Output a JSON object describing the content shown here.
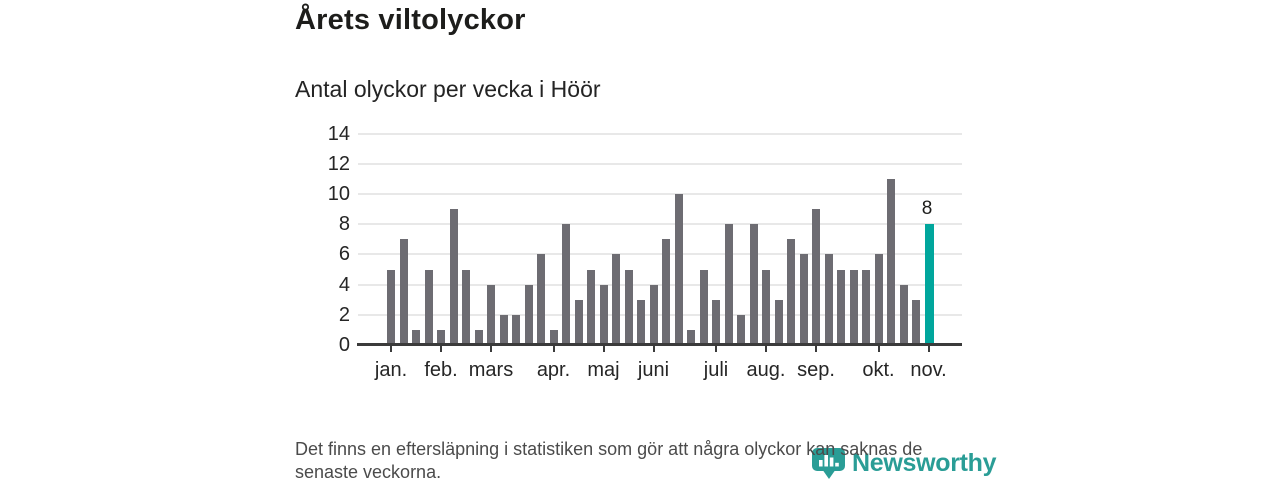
{
  "header": {
    "title": "Årets viltolyckor",
    "subtitle": "Antal olyckor per vecka i Höör"
  },
  "chart_data": {
    "type": "bar",
    "title": "Årets viltolyckor",
    "subtitle": "Antal olyckor per vecka i Höör",
    "x_unit": "vecka (jan–nov)",
    "n_weeks": 44,
    "values": [
      5,
      7,
      1,
      5,
      1,
      9,
      5,
      1,
      4,
      2,
      2,
      4,
      6,
      1,
      8,
      3,
      5,
      4,
      6,
      5,
      3,
      4,
      7,
      10,
      1,
      5,
      3,
      8,
      2,
      8,
      5,
      3,
      7,
      6,
      9,
      6,
      5,
      5,
      5,
      6,
      11,
      4,
      3,
      8
    ],
    "highlight_last": {
      "value": 8,
      "label": "8"
    },
    "yticks": [
      0,
      2,
      4,
      6,
      8,
      10,
      12,
      14
    ],
    "ylim": [
      0,
      14
    ],
    "grid": "horizontal",
    "legend": "none",
    "month_ticks": [
      {
        "label": "jan.",
        "week": 1
      },
      {
        "label": "feb.",
        "week": 5
      },
      {
        "label": "mars",
        "week": 9
      },
      {
        "label": "apr.",
        "week": 14
      },
      {
        "label": "maj",
        "week": 18
      },
      {
        "label": "juni",
        "week": 22
      },
      {
        "label": "juli",
        "week": 27
      },
      {
        "label": "aug.",
        "week": 31
      },
      {
        "label": "sep.",
        "week": 35
      },
      {
        "label": "okt.",
        "week": 40
      },
      {
        "label": "nov.",
        "week": 44
      }
    ],
    "colors": {
      "bar": "#6d6c72",
      "highlight": "#00a69c",
      "grid": "#e8e8e8",
      "axis": "#3b3b3b"
    }
  },
  "footer": {
    "lines": [
      "Det finns en eftersläpning i statistiken som gör att några olyckor kan saknas de",
      "senaste veckorna."
    ]
  },
  "branding": {
    "logo_text": "Newsworthy",
    "logo_color": "#2a9d96"
  }
}
